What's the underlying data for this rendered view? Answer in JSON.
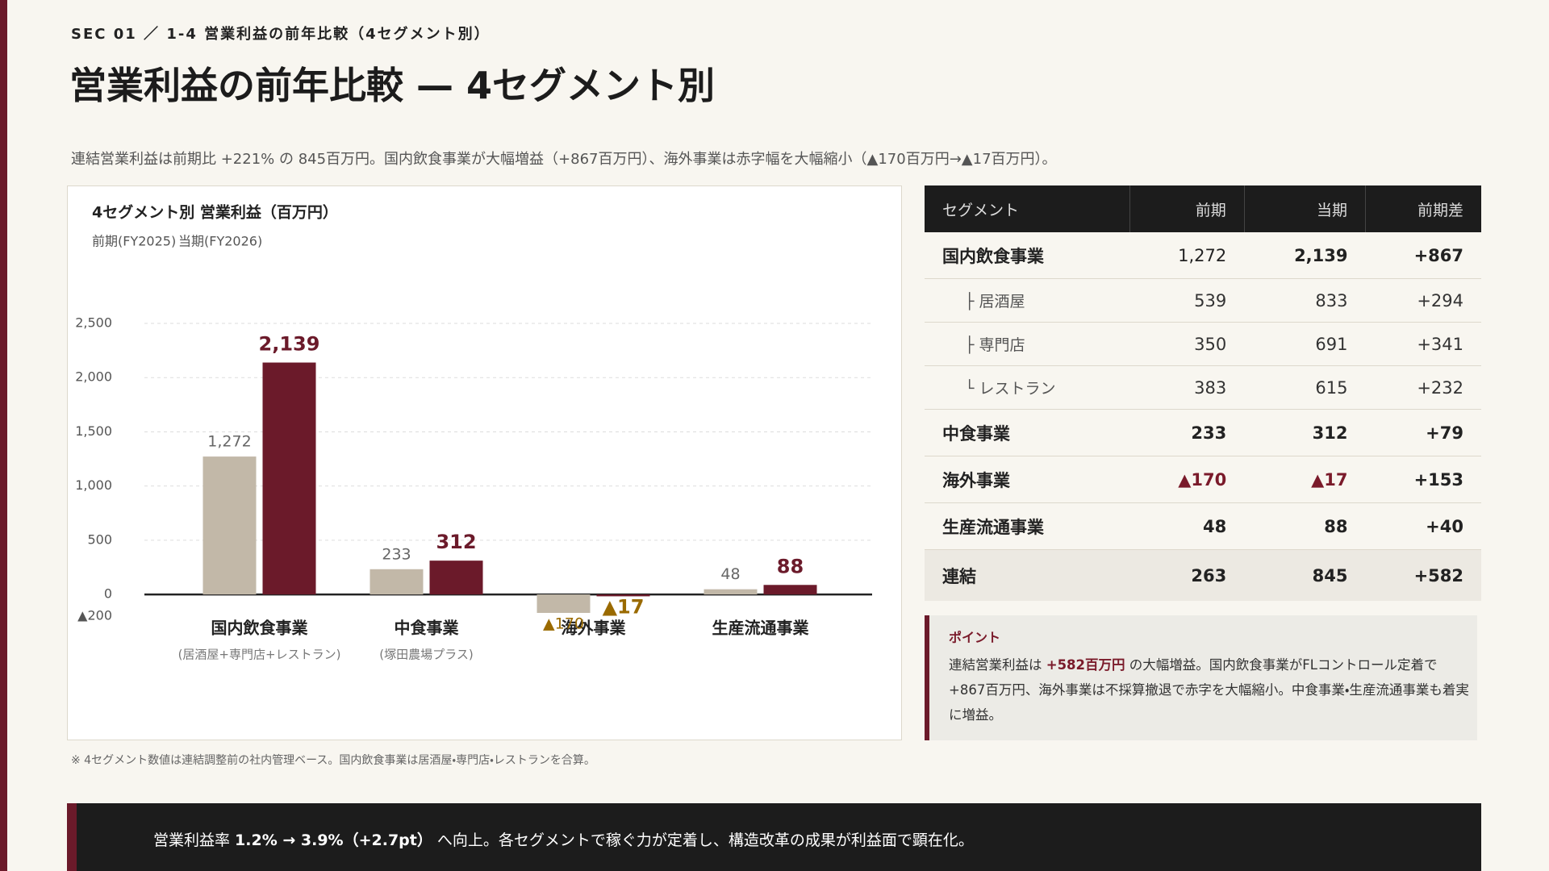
{
  "header": {
    "section": "SEC 01 ／ 1-4 営業利益の前年比較（4セグメント別）",
    "title": "営業利益の前年比較 — 4セグメント別",
    "lead": "連結営業利益は前期比 +221% の 845百万円。国内飲食事業が大幅増益（+867百万円）、海外事業は赤字幅を大幅縮小（▲170百万円→▲17百万円）。"
  },
  "chart_data": {
    "type": "bar",
    "title": "4セグメント別 営業利益（百万円）",
    "categories": [
      "国内飲食事業",
      "中食事業",
      "海外事業",
      "生産流通事業"
    ],
    "category_notes": [
      "(居酒屋+専門店+レストラン)",
      "(塚田農場プラス)",
      null,
      null
    ],
    "series": [
      {
        "name": "前期(FY2025)",
        "color": "#c2b8a8",
        "values": [
          1272,
          233,
          -170,
          48
        ],
        "value_labels": [
          "1,272",
          "233",
          "▲170",
          "48"
        ]
      },
      {
        "name": "当期(FY2026)",
        "color": "#6b1a2a",
        "values": [
          2139,
          312,
          -17,
          88
        ],
        "value_labels": [
          "2,139",
          "312",
          "▲17",
          "88"
        ]
      }
    ],
    "ylim": [
      -200,
      2500
    ],
    "yticks": [
      {
        "value": -200,
        "label": "▲200"
      },
      0,
      500,
      {
        "value": 1000,
        "label": "1,000"
      },
      {
        "value": 1500,
        "label": "1,500"
      },
      {
        "value": 2000,
        "label": "2,000"
      },
      {
        "value": 2500,
        "label": "2,500"
      }
    ],
    "grid": true
  },
  "footnote": "※ 4セグメント数値は連結調整前の社内管理ベース。国内飲食事業は居酒屋・専門店・レストランを合算。",
  "table": {
    "columns": [
      "セグメント",
      "前期",
      "当期",
      "前期差"
    ],
    "rows": [
      [
        "国内飲食事業",
        "1,272",
        "2,139",
        "+867"
      ],
      [
        "├ 居酒屋",
        "539",
        "833",
        "+294"
      ],
      [
        "├ 専門店",
        "350",
        "691",
        "+341"
      ],
      [
        "└ レストラン",
        "383",
        "615",
        "+232"
      ],
      [
        "中食事業",
        "233",
        "312",
        "+79"
      ],
      [
        "海外事業",
        "▲170",
        "▲17",
        "+153"
      ],
      [
        "生産流通事業",
        "48",
        "88",
        "+40"
      ],
      [
        "連結",
        "263",
        "845",
        "+582"
      ]
    ]
  },
  "point": {
    "label": "ポイント",
    "text": [
      "連結営業利益は ",
      "+582百万円",
      " の大幅増益。国内飲食事業がFLコントロール定着で +867百万円、海外事業は不採算撤退で赤字を大幅縮小。中食事業・生産流通事業も着実に増益。"
    ]
  },
  "banner": [
    "営業利益率 ",
    "1.2% → 3.9%（+2.7pt）",
    " へ向上。各セグメントで稼ぐ力が定着し、構造改革の成果が利益面で顕在化。"
  ]
}
